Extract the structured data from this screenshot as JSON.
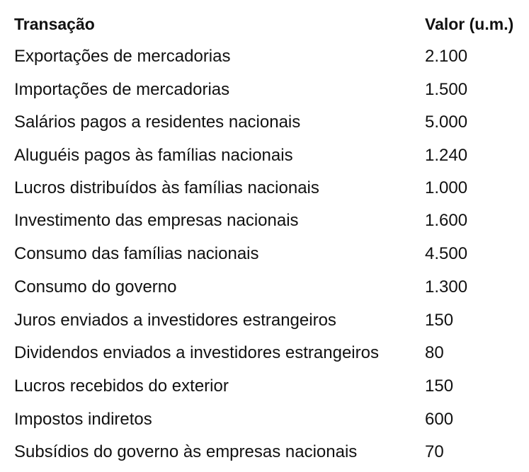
{
  "header": {
    "transaction": "Transação",
    "value": "Valor (u.m.)"
  },
  "rows": [
    {
      "label": "Exportações de mercadorias",
      "value": "2.100"
    },
    {
      "label": "Importações de mercadorias",
      "value": "1.500"
    },
    {
      "label": "Salários pagos a residentes nacionais",
      "value": "5.000"
    },
    {
      "label": "Aluguéis pagos às famílias nacionais",
      "value": "1.240"
    },
    {
      "label": "Lucros distribuídos às famílias nacionais",
      "value": "1.000"
    },
    {
      "label": "Investimento das empresas nacionais",
      "value": "1.600"
    },
    {
      "label": "Consumo das famílias nacionais",
      "value": "4.500"
    },
    {
      "label": "Consumo do governo",
      "value": "1.300"
    },
    {
      "label": "Juros enviados a investidores estrangeiros",
      "value": "150"
    },
    {
      "label": "Dividendos enviados a investidores estrangeiros",
      "value": "80"
    },
    {
      "label": "Lucros recebidos do exterior",
      "value": "150"
    },
    {
      "label": "Impostos indiretos",
      "value": "600"
    },
    {
      "label": "Subsídios do governo às empresas nacionais",
      "value": "70"
    }
  ]
}
